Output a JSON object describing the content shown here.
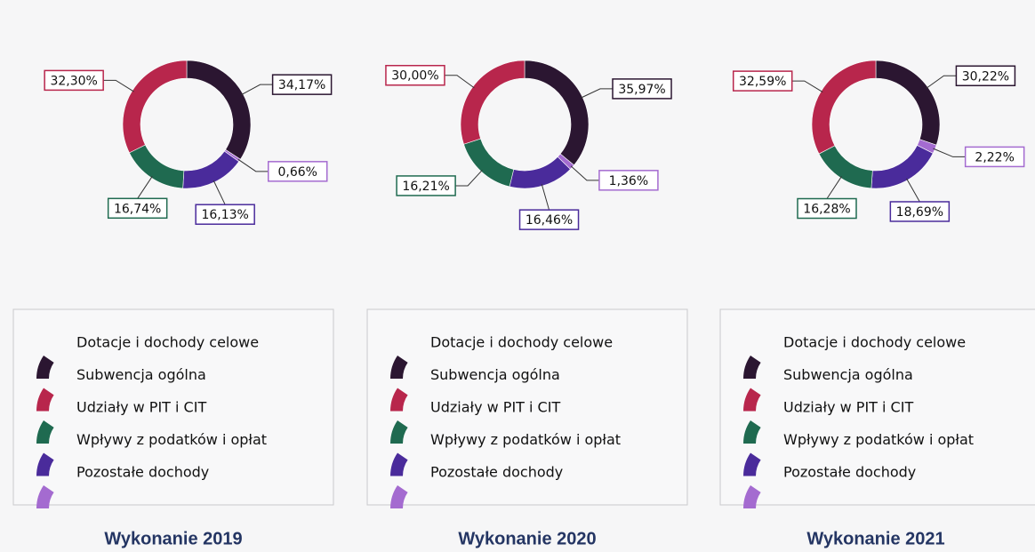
{
  "chart_data": [
    {
      "type": "pie",
      "title": "Wykonanie 2019",
      "categories": [
        "Dotacje i dochody celowe",
        "Subwencja ogólna",
        "Udziały w PIT i CIT",
        "Wpływy z podatków i opłat",
        "Pozostałe dochody"
      ],
      "values": [
        34.17,
        32.3,
        16.74,
        16.13,
        0.66
      ],
      "value_labels": [
        "34,17%",
        "32,30%",
        "16,74%",
        "16,13%",
        "0,66%"
      ],
      "colors": [
        "#2b1631",
        "#b8264c",
        "#1f6a50",
        "#4a2b9b",
        "#a46bd0"
      ]
    },
    {
      "type": "pie",
      "title": "Wykonanie 2020",
      "categories": [
        "Dotacje i dochody celowe",
        "Subwencja ogólna",
        "Udziały w PIT i CIT",
        "Wpływy z podatków i opłat",
        "Pozostałe dochody"
      ],
      "values": [
        35.97,
        30.0,
        16.21,
        16.46,
        1.36
      ],
      "value_labels": [
        "35,97%",
        "30,00%",
        "16,21%",
        "16,46%",
        "1,36%"
      ],
      "colors": [
        "#2b1631",
        "#b8264c",
        "#1f6a50",
        "#4a2b9b",
        "#a46bd0"
      ]
    },
    {
      "type": "pie",
      "title": "Wykonanie 2021",
      "categories": [
        "Dotacje i dochody celowe",
        "Subwencja ogólna",
        "Udziały w PIT i CIT",
        "Wpływy z podatków i opłat",
        "Pozostałe dochody"
      ],
      "values": [
        30.22,
        32.59,
        16.28,
        18.69,
        2.22
      ],
      "value_labels": [
        "30,22%",
        "32,59%",
        "16,28%",
        "18,69%",
        "2,22%"
      ],
      "colors": [
        "#2b1631",
        "#b8264c",
        "#1f6a50",
        "#4a2b9b",
        "#a46bd0"
      ]
    }
  ]
}
